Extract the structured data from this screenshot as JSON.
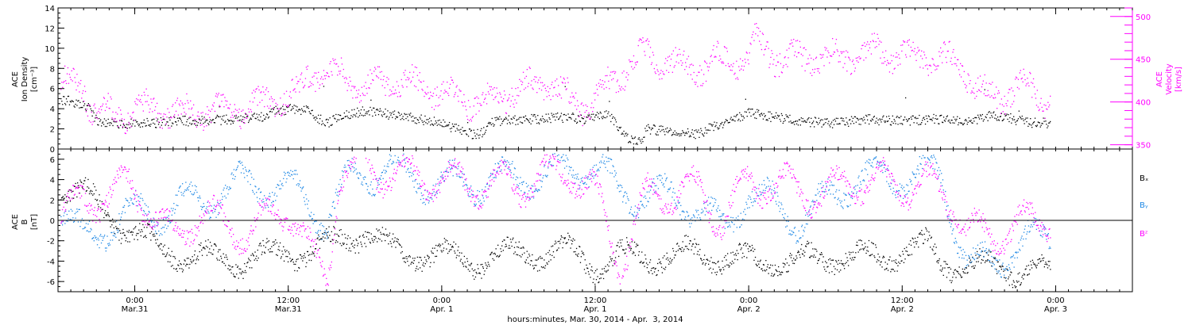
{
  "colors": {
    "black": "#000000",
    "magenta": "#ff00ff",
    "blue": "#1e88e5",
    "axis": "#000000"
  },
  "chart_data": [
    {
      "type": "scatter",
      "panel": "top",
      "ylabel_lines": [
        "ACE",
        "Ion Density",
        "[cm⁻³]"
      ],
      "y2label_lines": [
        "ACE",
        "Velocity",
        "[km/s]"
      ],
      "ylim": [
        0,
        14
      ],
      "y2lim": [
        345,
        510
      ],
      "yticks": [
        0,
        2,
        4,
        6,
        8,
        10,
        12,
        14
      ],
      "y2ticks": [
        350,
        400,
        450,
        500
      ],
      "xlim_hours": [
        -6,
        78
      ],
      "grid": false,
      "series": [
        {
          "color": "black",
          "axis": "left",
          "anchors": [
            [
              -5,
              4.8
            ],
            [
              -3.5,
              4.0
            ],
            [
              -3,
              2.8
            ],
            [
              0,
              2.5
            ],
            [
              3,
              2.8
            ],
            [
              6,
              2.9
            ],
            [
              8,
              3.0
            ],
            [
              10,
              3.2
            ],
            [
              11,
              3.8
            ],
            [
              12,
              4.0
            ],
            [
              13.5,
              3.8
            ],
            [
              15,
              2.5
            ],
            [
              16,
              3.3
            ],
            [
              18,
              3.8
            ],
            [
              21,
              3.3
            ],
            [
              24,
              2.6
            ],
            [
              26,
              1.6
            ],
            [
              27,
              1.5
            ],
            [
              28,
              2.8
            ],
            [
              31,
              3.0
            ],
            [
              34,
              3.2
            ],
            [
              35,
              3.0
            ],
            [
              37,
              3.4
            ],
            [
              38.5,
              1.2
            ],
            [
              39.5,
              0.8
            ],
            [
              40,
              2.0
            ],
            [
              42,
              1.8
            ],
            [
              44,
              1.5
            ],
            [
              45,
              2.2
            ],
            [
              48,
              3.6
            ],
            [
              52,
              2.8
            ],
            [
              55,
              2.6
            ],
            [
              57,
              3.0
            ],
            [
              60,
              2.8
            ],
            [
              62,
              3.0
            ],
            [
              63.5,
              3.0
            ],
            [
              65,
              2.8
            ],
            [
              67,
              3.4
            ],
            [
              70,
              2.7
            ],
            [
              71.6,
              2.6
            ]
          ],
          "spread": 0.7,
          "gap_count": 0
        },
        {
          "color": "magenta",
          "axis": "right",
          "anchors": [
            [
              -5.5,
              418
            ],
            [
              -4,
              415
            ],
            [
              -3.5,
              388
            ],
            [
              -2.5,
              385
            ],
            [
              -1,
              380
            ],
            [
              1,
              388
            ],
            [
              3,
              382
            ],
            [
              6,
              385
            ],
            [
              8,
              386
            ],
            [
              10,
              395
            ],
            [
              12,
              400
            ],
            [
              13,
              410
            ],
            [
              13.5,
              425
            ],
            [
              14,
              430
            ],
            [
              16,
              428
            ],
            [
              17.5,
              410
            ],
            [
              19,
              418
            ],
            [
              22,
              415
            ],
            [
              24,
              405
            ],
            [
              26,
              398
            ],
            [
              27,
              392
            ],
            [
              28,
              400
            ],
            [
              30,
              410
            ],
            [
              32,
              418
            ],
            [
              34,
              398
            ],
            [
              35,
              390
            ],
            [
              36,
              400
            ],
            [
              37,
              415
            ],
            [
              38,
              425
            ],
            [
              38.5,
              440
            ],
            [
              39,
              445
            ],
            [
              40,
              450
            ],
            [
              42,
              440
            ],
            [
              44,
              435
            ],
            [
              46,
              445
            ],
            [
              48,
              445
            ],
            [
              48.5,
              470
            ],
            [
              49,
              460
            ],
            [
              50,
              448
            ],
            [
              52,
              445
            ],
            [
              54,
              445
            ],
            [
              56,
              450
            ],
            [
              58,
              455
            ],
            [
              60,
              450
            ],
            [
              62,
              448
            ],
            [
              64,
              442
            ],
            [
              65,
              430
            ],
            [
              66,
              408
            ],
            [
              67,
              400
            ],
            [
              68,
              402
            ],
            [
              69,
              415
            ],
            [
              70,
              410
            ],
            [
              71,
              400
            ],
            [
              71.6,
              395
            ]
          ],
          "spread": 12
        }
      ]
    },
    {
      "type": "scatter",
      "panel": "bottom",
      "ylabel_lines": [
        "ACE",
        "B",
        "[nT]"
      ],
      "ylim": [
        -7,
        7
      ],
      "yticks": [
        -6,
        -4,
        -2,
        0,
        2,
        4,
        6
      ],
      "zero_line": true,
      "legend_placement": "right",
      "series": [
        {
          "name": "Bₓ",
          "color": "black",
          "amp": 2.0,
          "offset": -2.3,
          "seed": 3,
          "anchors": [
            [
              -5.5,
              3.0
            ],
            [
              -4,
              2.8
            ],
            [
              -3,
              1.5
            ],
            [
              -1,
              -0.5
            ],
            [
              2,
              -2.8
            ],
            [
              5,
              -3.6
            ],
            [
              8,
              -4.0
            ],
            [
              10,
              -3.6
            ],
            [
              13,
              -3.0
            ],
            [
              15,
              -2.5
            ],
            [
              18,
              -1.0
            ],
            [
              20,
              -3.0
            ],
            [
              24,
              -3.5
            ],
            [
              27,
              -4.0
            ],
            [
              30,
              -3.2
            ],
            [
              34,
              -3.0
            ],
            [
              36,
              -4.5
            ],
            [
              38,
              -3.5
            ],
            [
              40,
              -3.6
            ],
            [
              44,
              -3.2
            ],
            [
              48,
              -4.0
            ],
            [
              52,
              -4.0
            ],
            [
              54,
              -3.5
            ],
            [
              58,
              -3.6
            ],
            [
              60,
              -3.0
            ],
            [
              62,
              -2.5
            ],
            [
              63,
              -4.0
            ],
            [
              65,
              -4.5
            ],
            [
              68,
              -4.6
            ],
            [
              70,
              -5.0
            ],
            [
              71.6,
              -5.2
            ]
          ]
        },
        {
          "name": "Bᵧ",
          "color": "blue",
          "amp": 3.0,
          "offset": 1.5,
          "seed": 7,
          "anchors": [
            [
              -5.5,
              1.0
            ],
            [
              -4,
              -2.0
            ],
            [
              -1,
              0.5
            ],
            [
              2,
              1.0
            ],
            [
              5,
              2.0
            ],
            [
              8,
              3.5
            ],
            [
              11,
              3.5
            ],
            [
              13,
              2.5
            ],
            [
              15,
              0
            ],
            [
              17,
              4.5
            ],
            [
              20,
              5.0
            ],
            [
              24,
              3.5
            ],
            [
              28,
              4.0
            ],
            [
              32,
              4.5
            ],
            [
              36,
              5.5
            ],
            [
              38,
              2.5
            ],
            [
              40,
              2.8
            ],
            [
              44,
              1.5
            ],
            [
              46,
              -1.0
            ],
            [
              48,
              3.0
            ],
            [
              52,
              0
            ],
            [
              54,
              2.0
            ],
            [
              56,
              4.0
            ],
            [
              60,
              4.5
            ],
            [
              63,
              4.5
            ],
            [
              65,
              -4.0
            ],
            [
              66,
              -4.5
            ],
            [
              70,
              -2.0
            ],
            [
              71.6,
              -1.5
            ]
          ]
        },
        {
          "name": "Bᶻ",
          "color": "magenta",
          "amp": 3.2,
          "offset": 0.8,
          "seed": 11,
          "anchors": [
            [
              -5.5,
              0.5
            ],
            [
              -4,
              2.0
            ],
            [
              -2,
              2.5
            ],
            [
              -0.5,
              3.5
            ],
            [
              1,
              1.5
            ],
            [
              3,
              -2.0
            ],
            [
              5,
              1.0
            ],
            [
              7,
              -0.5
            ],
            [
              9,
              -1.0
            ],
            [
              12,
              1.5
            ],
            [
              14,
              -4.0
            ],
            [
              15,
              -5.5
            ],
            [
              16,
              4.5
            ],
            [
              18,
              5.5
            ],
            [
              20,
              4.5
            ],
            [
              24,
              4.0
            ],
            [
              26,
              3.5
            ],
            [
              30,
              3.5
            ],
            [
              34,
              5.0
            ],
            [
              36,
              2.5
            ],
            [
              38,
              -4.5
            ],
            [
              40,
              2.5
            ],
            [
              44,
              3.0
            ],
            [
              46,
              0
            ],
            [
              48,
              4.0
            ],
            [
              52,
              3.0
            ],
            [
              54,
              2.5
            ],
            [
              56,
              4.0
            ],
            [
              60,
              3.5
            ],
            [
              62,
              3.5
            ],
            [
              64,
              2.0
            ],
            [
              65,
              -1.0
            ],
            [
              67,
              -1.5
            ],
            [
              69,
              -0.5
            ],
            [
              71.6,
              0.5
            ]
          ]
        }
      ]
    }
  ],
  "x_axis": {
    "ticks": [
      {
        "h": 0,
        "time": "0:00",
        "date": "Mar.31"
      },
      {
        "h": 12,
        "time": "12:00",
        "date": "Mar.31"
      },
      {
        "h": 24,
        "time": "0:00",
        "date": "Apr. 1"
      },
      {
        "h": 36,
        "time": "12:00",
        "date": "Apr. 1"
      },
      {
        "h": 48,
        "time": "0:00",
        "date": "Apr. 2"
      },
      {
        "h": 60,
        "time": "12:00",
        "date": "Apr. 2"
      },
      {
        "h": 72,
        "time": "0:00",
        "date": "Apr. 3"
      }
    ],
    "label": "hours:minutes, Mar. 30, 2014 - Apr.  3, 2014"
  },
  "legend": {
    "labels": [
      "Bₓ",
      "Bᵧ",
      "Bᶻ"
    ]
  }
}
